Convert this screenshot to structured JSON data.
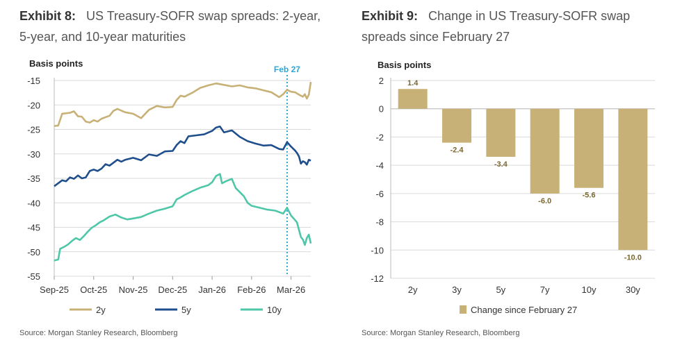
{
  "exhibit8": {
    "label": "Exhibit 8:",
    "title_line1": "US Treasury-SOFR swap spreads: 2-year,",
    "title_line2": "5-year, and 10-year maturities",
    "y_axis_title": "Basis points",
    "source": "Source: Morgan Stanley Research, Bloomberg"
  },
  "exhibit9": {
    "label": "Exhibit 9:",
    "title_line1": "Change in US Treasury-SOFR swap",
    "title_line2": "spreads since February 27",
    "y_axis_title": "Basis points",
    "source": "Source: Morgan Stanley Research, Bloomberg"
  },
  "colors": {
    "y2": "#C8B177",
    "y5": "#1F4E8C",
    "y10": "#4DC7A8",
    "bar": "#C8B177",
    "marker": "#2AA7D6",
    "barlabel": "#7A6630"
  },
  "chart_data": [
    {
      "type": "line",
      "ylabel": "Basis points",
      "ylim": [
        -55,
        -15
      ],
      "yticks": [
        -15,
        -20,
        -25,
        -30,
        -35,
        -40,
        -45,
        -50,
        -55
      ],
      "xlim": [
        0,
        6.5
      ],
      "xticks": [
        {
          "label": "Sep-25",
          "x": 0
        },
        {
          "label": "Oct-25",
          "x": 1
        },
        {
          "label": "Nov-25",
          "x": 2
        },
        {
          "label": "Dec-25",
          "x": 3
        },
        {
          "label": "Jan-26",
          "x": 4
        },
        {
          "label": "Feb-26",
          "x": 5
        },
        {
          "label": "Mar-26",
          "x": 6
        }
      ],
      "annotation": {
        "label": "Feb 27",
        "x": 5.9
      },
      "series": [
        {
          "name": "2y",
          "key": "y2",
          "points": [
            [
              0,
              -24.3
            ],
            [
              0.1,
              -24.2
            ],
            [
              0.2,
              -21.8
            ],
            [
              0.4,
              -21.6
            ],
            [
              0.5,
              -21.3
            ],
            [
              0.6,
              -22.3
            ],
            [
              0.7,
              -22.4
            ],
            [
              0.8,
              -23.4
            ],
            [
              0.9,
              -23.6
            ],
            [
              1.0,
              -23.1
            ],
            [
              1.1,
              -23.4
            ],
            [
              1.2,
              -22.8
            ],
            [
              1.4,
              -22.2
            ],
            [
              1.5,
              -21.2
            ],
            [
              1.6,
              -20.8
            ],
            [
              1.8,
              -21.5
            ],
            [
              2.0,
              -21.8
            ],
            [
              2.2,
              -22.7
            ],
            [
              2.4,
              -21.0
            ],
            [
              2.6,
              -20.2
            ],
            [
              2.8,
              -20.5
            ],
            [
              3.0,
              -20.4
            ],
            [
              3.1,
              -19.0
            ],
            [
              3.2,
              -18.1
            ],
            [
              3.3,
              -18.3
            ],
            [
              3.5,
              -17.5
            ],
            [
              3.7,
              -16.5
            ],
            [
              3.9,
              -16.0
            ],
            [
              4.1,
              -15.6
            ],
            [
              4.3,
              -15.9
            ],
            [
              4.5,
              -16.2
            ],
            [
              4.7,
              -16.0
            ],
            [
              4.9,
              -16.4
            ],
            [
              5.1,
              -16.6
            ],
            [
              5.3,
              -17.0
            ],
            [
              5.5,
              -17.4
            ],
            [
              5.7,
              -18.4
            ],
            [
              5.8,
              -17.8
            ],
            [
              5.9,
              -16.9
            ],
            [
              6.0,
              -17.3
            ],
            [
              6.1,
              -17.4
            ],
            [
              6.2,
              -17.9
            ],
            [
              6.3,
              -18.3
            ],
            [
              6.35,
              -17.8
            ],
            [
              6.4,
              -18.7
            ],
            [
              6.45,
              -17.9
            ],
            [
              6.5,
              -15.3
            ]
          ]
        },
        {
          "name": "5y",
          "key": "y5",
          "points": [
            [
              0,
              -36.6
            ],
            [
              0.1,
              -36.0
            ],
            [
              0.2,
              -35.4
            ],
            [
              0.3,
              -35.6
            ],
            [
              0.4,
              -34.8
            ],
            [
              0.5,
              -35.1
            ],
            [
              0.6,
              -34.4
            ],
            [
              0.7,
              -35.0
            ],
            [
              0.8,
              -34.8
            ],
            [
              0.9,
              -33.5
            ],
            [
              1.0,
              -33.2
            ],
            [
              1.1,
              -33.5
            ],
            [
              1.2,
              -33.0
            ],
            [
              1.3,
              -32.1
            ],
            [
              1.4,
              -32.4
            ],
            [
              1.5,
              -31.8
            ],
            [
              1.6,
              -31.2
            ],
            [
              1.7,
              -31.6
            ],
            [
              1.8,
              -31.2
            ],
            [
              2.0,
              -30.8
            ],
            [
              2.2,
              -31.3
            ],
            [
              2.4,
              -30.1
            ],
            [
              2.6,
              -30.4
            ],
            [
              2.8,
              -29.5
            ],
            [
              3.0,
              -29.4
            ],
            [
              3.1,
              -28.2
            ],
            [
              3.2,
              -27.4
            ],
            [
              3.3,
              -27.8
            ],
            [
              3.4,
              -26.4
            ],
            [
              3.6,
              -26.2
            ],
            [
              3.8,
              -26.0
            ],
            [
              4.0,
              -25.3
            ],
            [
              4.1,
              -24.6
            ],
            [
              4.2,
              -24.4
            ],
            [
              4.3,
              -25.6
            ],
            [
              4.5,
              -25.2
            ],
            [
              4.7,
              -26.5
            ],
            [
              4.9,
              -27.4
            ],
            [
              5.1,
              -27.9
            ],
            [
              5.3,
              -28.3
            ],
            [
              5.5,
              -28.2
            ],
            [
              5.7,
              -29.0
            ],
            [
              5.8,
              -29.1
            ],
            [
              5.9,
              -27.6
            ],
            [
              6.0,
              -28.5
            ],
            [
              6.1,
              -29.3
            ],
            [
              6.15,
              -29.8
            ],
            [
              6.2,
              -30.5
            ],
            [
              6.25,
              -32.0
            ],
            [
              6.3,
              -31.5
            ],
            [
              6.35,
              -31.7
            ],
            [
              6.4,
              -32.2
            ],
            [
              6.45,
              -31.2
            ],
            [
              6.5,
              -31.4
            ]
          ]
        },
        {
          "name": "10y",
          "key": "y10",
          "points": [
            [
              0,
              -51.8
            ],
            [
              0.1,
              -51.6
            ],
            [
              0.15,
              -49.4
            ],
            [
              0.25,
              -49.0
            ],
            [
              0.35,
              -48.5
            ],
            [
              0.45,
              -47.8
            ],
            [
              0.55,
              -47.2
            ],
            [
              0.65,
              -47.6
            ],
            [
              0.75,
              -46.8
            ],
            [
              0.85,
              -45.9
            ],
            [
              0.95,
              -45.1
            ],
            [
              1.05,
              -44.6
            ],
            [
              1.15,
              -44.0
            ],
            [
              1.25,
              -43.6
            ],
            [
              1.4,
              -42.8
            ],
            [
              1.55,
              -42.4
            ],
            [
              1.7,
              -43.0
            ],
            [
              1.85,
              -43.4
            ],
            [
              2.0,
              -43.2
            ],
            [
              2.2,
              -42.9
            ],
            [
              2.4,
              -42.2
            ],
            [
              2.6,
              -41.6
            ],
            [
              2.8,
              -41.2
            ],
            [
              3.0,
              -40.7
            ],
            [
              3.1,
              -39.3
            ],
            [
              3.2,
              -38.9
            ],
            [
              3.3,
              -38.4
            ],
            [
              3.5,
              -37.6
            ],
            [
              3.7,
              -36.9
            ],
            [
              3.9,
              -36.4
            ],
            [
              4.0,
              -35.8
            ],
            [
              4.1,
              -34.5
            ],
            [
              4.2,
              -34.1
            ],
            [
              4.25,
              -36.0
            ],
            [
              4.35,
              -35.6
            ],
            [
              4.5,
              -35.1
            ],
            [
              4.6,
              -37.0
            ],
            [
              4.7,
              -37.8
            ],
            [
              4.8,
              -38.6
            ],
            [
              4.9,
              -40.0
            ],
            [
              5.0,
              -40.6
            ],
            [
              5.2,
              -41.0
            ],
            [
              5.4,
              -41.4
            ],
            [
              5.6,
              -41.6
            ],
            [
              5.8,
              -42.2
            ],
            [
              5.9,
              -41.0
            ],
            [
              6.0,
              -42.6
            ],
            [
              6.1,
              -43.5
            ],
            [
              6.15,
              -44.0
            ],
            [
              6.2,
              -45.5
            ],
            [
              6.25,
              -47.0
            ],
            [
              6.3,
              -47.5
            ],
            [
              6.35,
              -48.6
            ],
            [
              6.4,
              -47.2
            ],
            [
              6.45,
              -46.5
            ],
            [
              6.5,
              -48.3
            ]
          ]
        }
      ],
      "legend": [
        {
          "name": "2y",
          "key": "y2"
        },
        {
          "name": "5y",
          "key": "y5"
        },
        {
          "name": "10y",
          "key": "y10"
        }
      ]
    },
    {
      "type": "bar",
      "ylabel": "Basis points",
      "ylim": [
        -12,
        2
      ],
      "yticks": [
        2,
        0,
        -2,
        -4,
        -6,
        -8,
        -10,
        -12
      ],
      "categories": [
        "2y",
        "3y",
        "5y",
        "7y",
        "10y",
        "30y"
      ],
      "values": [
        1.4,
        -2.4,
        -3.4,
        -6.0,
        -5.6,
        -10.0
      ],
      "data_labels": [
        "1.4",
        "-2.4",
        "-3.4",
        "-6.0",
        "-5.6",
        "-10.0"
      ],
      "legend": "Change since February 27"
    }
  ]
}
